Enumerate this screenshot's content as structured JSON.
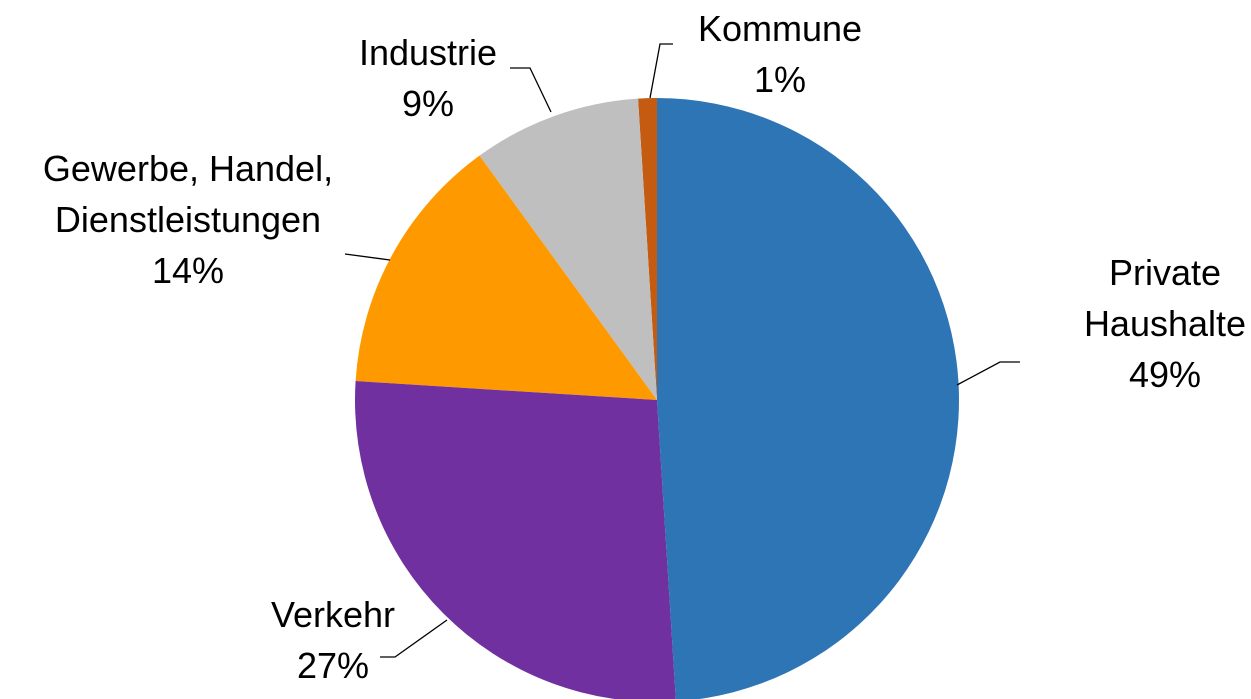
{
  "chart_data": {
    "type": "pie",
    "categories": [
      "Private Haushalte",
      "Verkehr",
      "Gewerbe, Handel, Dienstleistungen",
      "Industrie",
      "Kommune"
    ],
    "values": [
      49,
      27,
      14,
      9,
      1
    ],
    "value_labels": [
      "49%",
      "27%",
      "14%",
      "9%",
      "1%"
    ],
    "colors": [
      "#2e75b6",
      "#7030a0",
      "#ff9900",
      "#bfbfbf",
      "#c55a11"
    ]
  }
}
